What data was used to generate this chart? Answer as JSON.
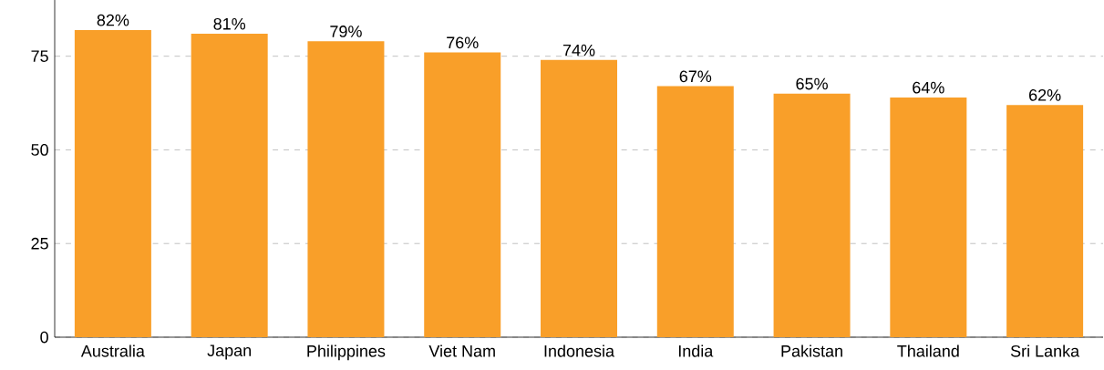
{
  "chart_data": {
    "type": "bar",
    "categories": [
      "Australia",
      "Japan",
      "Philippines",
      "Viet Nam",
      "Indonesia",
      "India",
      "Pakistan",
      "Thailand",
      "Sri Lanka"
    ],
    "values": [
      82,
      81,
      79,
      76,
      74,
      67,
      65,
      64,
      62
    ],
    "value_labels": [
      "82%",
      "81%",
      "79%",
      "76%",
      "74%",
      "67%",
      "65%",
      "64%",
      "62%"
    ],
    "color": "#f99f29",
    "ylim": [
      0,
      90
    ],
    "yticks": [
      0,
      25,
      50,
      75
    ],
    "grid": "y"
  }
}
